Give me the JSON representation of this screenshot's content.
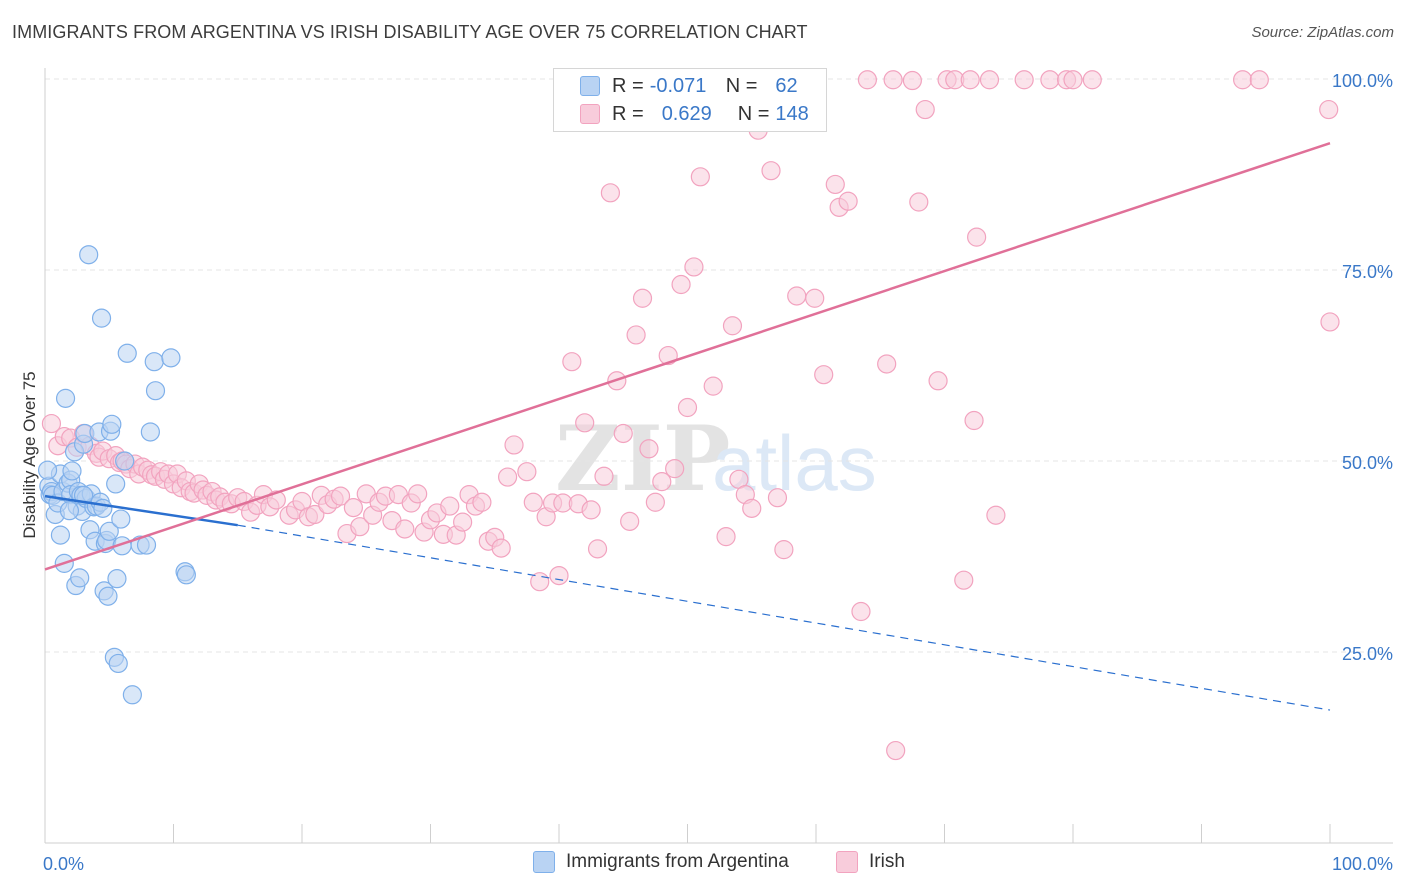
{
  "title": "IMMIGRANTS FROM ARGENTINA VS IRISH DISABILITY AGE OVER 75 CORRELATION CHART",
  "source": "Source: ZipAtlas.com",
  "legend_top": [
    {
      "r_label": "R = ",
      "r_value": "-0.071",
      "n_label": "N = ",
      "n_value": "62",
      "color": "#7fb0ea"
    },
    {
      "r_label": "R = ",
      "r_value": "0.629",
      "n_label": "N = ",
      "n_value": "148",
      "color": "#f2a3bf"
    }
  ],
  "chart_data": {
    "type": "scatter",
    "title": "IMMIGRANTS FROM ARGENTINA VS IRISH DISABILITY AGE OVER 75 CORRELATION CHART",
    "xlabel": "",
    "ylabel": "Disability Age Over 75",
    "xlim": [
      0,
      100
    ],
    "ylim": [
      0,
      100
    ],
    "x_tick_labels": [
      "0.0%",
      "100.0%"
    ],
    "y_tick_labels": [
      "25.0%",
      "50.0%",
      "75.0%",
      "100.0%"
    ],
    "y_ticks": [
      25,
      50,
      75,
      100
    ],
    "grid": "horizontal dashed",
    "watermark": {
      "part1": "ZIP",
      "part2": "atlas"
    },
    "series": [
      {
        "name": "Immigrants from Argentina",
        "color": "#7fb0ea",
        "fill": "#b9d3f3",
        "trend_line": {
          "x": [
            0,
            15
          ],
          "y": [
            45.4,
            41.6
          ],
          "extended_x": [
            15,
            100
          ],
          "extended_y": [
            41.6,
            17.4
          ],
          "color": "#2a6fcf"
        },
        "points": [
          [
            0.3,
            46.7
          ],
          [
            0.4,
            45.6
          ],
          [
            0.5,
            46.0
          ],
          [
            0.6,
            45.5
          ],
          [
            0.8,
            43.0
          ],
          [
            1.0,
            44.5
          ],
          [
            1.2,
            40.3
          ],
          [
            1.2,
            48.3
          ],
          [
            1.4,
            46.0
          ],
          [
            1.5,
            36.6
          ],
          [
            1.6,
            58.2
          ],
          [
            1.8,
            47.1
          ],
          [
            2.0,
            47.5
          ],
          [
            2.0,
            45.6
          ],
          [
            2.1,
            48.7
          ],
          [
            2.3,
            51.2
          ],
          [
            2.4,
            33.7
          ],
          [
            2.5,
            44.1
          ],
          [
            2.6,
            46.0
          ],
          [
            2.7,
            34.7
          ],
          [
            2.8,
            45.5
          ],
          [
            2.9,
            43.4
          ],
          [
            3.0,
            52.2
          ],
          [
            3.1,
            53.6
          ],
          [
            3.2,
            45.1
          ],
          [
            3.4,
            77.0
          ],
          [
            3.5,
            41.0
          ],
          [
            3.6,
            45.7
          ],
          [
            3.8,
            44.0
          ],
          [
            3.9,
            39.5
          ],
          [
            4.0,
            44.1
          ],
          [
            4.2,
            53.8
          ],
          [
            4.3,
            44.6
          ],
          [
            4.4,
            68.7
          ],
          [
            4.5,
            43.8
          ],
          [
            4.6,
            33.0
          ],
          [
            4.7,
            39.2
          ],
          [
            4.8,
            39.6
          ],
          [
            4.9,
            32.3
          ],
          [
            5.0,
            40.8
          ],
          [
            5.1,
            53.9
          ],
          [
            5.2,
            54.8
          ],
          [
            5.4,
            24.3
          ],
          [
            5.5,
            47.0
          ],
          [
            5.6,
            34.6
          ],
          [
            5.7,
            23.5
          ],
          [
            5.9,
            42.4
          ],
          [
            6.0,
            38.9
          ],
          [
            6.2,
            50.0
          ],
          [
            6.4,
            64.1
          ],
          [
            6.8,
            19.4
          ],
          [
            7.4,
            39.0
          ],
          [
            7.9,
            39.0
          ],
          [
            8.2,
            53.8
          ],
          [
            8.5,
            63.0
          ],
          [
            8.6,
            59.2
          ],
          [
            9.8,
            63.5
          ],
          [
            10.9,
            35.5
          ],
          [
            11.0,
            35.1
          ],
          [
            0.2,
            48.8
          ],
          [
            1.9,
            43.5
          ],
          [
            3.0,
            45.5
          ]
        ]
      },
      {
        "name": "Irish",
        "color": "#f2a3bf",
        "fill": "#f8ccdb",
        "trend_line": {
          "x": [
            0,
            100
          ],
          "y": [
            35.8,
            91.6
          ],
          "color": "#e07098"
        },
        "points": [
          [
            0.5,
            54.9
          ],
          [
            1.0,
            52.0
          ],
          [
            1.5,
            53.2
          ],
          [
            2.0,
            53.0
          ],
          [
            2.5,
            51.8
          ],
          [
            3.0,
            53.6
          ],
          [
            3.5,
            52.0
          ],
          [
            4.0,
            51.0
          ],
          [
            4.2,
            50.5
          ],
          [
            4.5,
            51.3
          ],
          [
            5.0,
            50.3
          ],
          [
            5.5,
            50.7
          ],
          [
            5.8,
            49.8
          ],
          [
            6.0,
            50.0
          ],
          [
            6.3,
            49.6
          ],
          [
            6.6,
            49.0
          ],
          [
            7.0,
            49.6
          ],
          [
            7.3,
            48.3
          ],
          [
            7.6,
            49.2
          ],
          [
            8.0,
            48.8
          ],
          [
            8.3,
            48.2
          ],
          [
            8.6,
            48.0
          ],
          [
            9.0,
            48.6
          ],
          [
            9.3,
            47.6
          ],
          [
            9.6,
            48.3
          ],
          [
            10.0,
            47.0
          ],
          [
            10.3,
            48.3
          ],
          [
            10.6,
            46.5
          ],
          [
            11.0,
            47.4
          ],
          [
            11.3,
            46.0
          ],
          [
            11.6,
            45.8
          ],
          [
            12.0,
            47.0
          ],
          [
            12.3,
            46.2
          ],
          [
            12.6,
            45.5
          ],
          [
            13.0,
            46.0
          ],
          [
            13.3,
            44.9
          ],
          [
            13.6,
            45.3
          ],
          [
            14.0,
            44.6
          ],
          [
            14.5,
            44.4
          ],
          [
            15.0,
            45.2
          ],
          [
            15.5,
            44.7
          ],
          [
            16.0,
            43.3
          ],
          [
            16.5,
            44.2
          ],
          [
            17.0,
            45.6
          ],
          [
            17.5,
            44.0
          ],
          [
            18.0,
            44.9
          ],
          [
            19.0,
            42.9
          ],
          [
            19.5,
            43.6
          ],
          [
            20.0,
            44.7
          ],
          [
            20.5,
            42.7
          ],
          [
            21.0,
            43.0
          ],
          [
            21.5,
            45.5
          ],
          [
            22.0,
            44.3
          ],
          [
            22.5,
            45.0
          ],
          [
            23.0,
            45.4
          ],
          [
            23.5,
            40.5
          ],
          [
            24.0,
            43.9
          ],
          [
            24.5,
            41.4
          ],
          [
            25.0,
            45.7
          ],
          [
            25.5,
            42.9
          ],
          [
            26.0,
            44.6
          ],
          [
            26.5,
            45.4
          ],
          [
            27.0,
            42.2
          ],
          [
            27.5,
            45.6
          ],
          [
            28.0,
            41.1
          ],
          [
            28.5,
            44.5
          ],
          [
            29.0,
            45.7
          ],
          [
            29.5,
            40.7
          ],
          [
            30.0,
            42.3
          ],
          [
            30.5,
            43.2
          ],
          [
            31.0,
            40.4
          ],
          [
            31.5,
            44.1
          ],
          [
            32.0,
            40.3
          ],
          [
            32.5,
            42.0
          ],
          [
            33.0,
            45.6
          ],
          [
            33.5,
            44.1
          ],
          [
            34.0,
            44.6
          ],
          [
            34.5,
            39.5
          ],
          [
            35.0,
            40.0
          ],
          [
            35.5,
            38.6
          ],
          [
            36.0,
            47.9
          ],
          [
            36.5,
            52.1
          ],
          [
            37.5,
            48.6
          ],
          [
            38.0,
            44.6
          ],
          [
            38.5,
            34.2
          ],
          [
            39.0,
            42.7
          ],
          [
            39.5,
            44.5
          ],
          [
            40.0,
            35.0
          ],
          [
            40.3,
            44.5
          ],
          [
            41.0,
            63.0
          ],
          [
            41.5,
            44.4
          ],
          [
            42.0,
            55.0
          ],
          [
            42.5,
            43.6
          ],
          [
            43.0,
            38.5
          ],
          [
            43.5,
            48.0
          ],
          [
            44.0,
            85.1
          ],
          [
            44.5,
            60.5
          ],
          [
            45.0,
            53.6
          ],
          [
            45.5,
            42.1
          ],
          [
            46.0,
            66.5
          ],
          [
            46.5,
            71.3
          ],
          [
            47.0,
            51.6
          ],
          [
            47.5,
            44.6
          ],
          [
            48.0,
            47.3
          ],
          [
            48.5,
            63.8
          ],
          [
            49.0,
            49.0
          ],
          [
            49.5,
            73.1
          ],
          [
            50.0,
            57.0
          ],
          [
            50.5,
            75.4
          ],
          [
            51.0,
            87.2
          ],
          [
            52.0,
            59.8
          ],
          [
            53.0,
            40.1
          ],
          [
            53.5,
            67.7
          ],
          [
            54.0,
            47.6
          ],
          [
            54.5,
            45.6
          ],
          [
            55.0,
            43.8
          ],
          [
            55.5,
            93.3
          ],
          [
            56.5,
            88.0
          ],
          [
            57.0,
            45.2
          ],
          [
            57.5,
            38.4
          ],
          [
            58.5,
            71.6
          ],
          [
            59.5,
            99.9
          ],
          [
            59.9,
            71.3
          ],
          [
            60.6,
            61.3
          ],
          [
            61.5,
            86.2
          ],
          [
            61.8,
            83.2
          ],
          [
            62.5,
            84.0
          ],
          [
            63.5,
            30.3
          ],
          [
            64.0,
            99.9
          ],
          [
            65.5,
            62.7
          ],
          [
            66.0,
            99.9
          ],
          [
            66.2,
            12.1
          ],
          [
            67.5,
            99.8
          ],
          [
            68.0,
            83.9
          ],
          [
            68.5,
            96.0
          ],
          [
            69.5,
            60.5
          ],
          [
            70.2,
            99.9
          ],
          [
            70.8,
            99.9
          ],
          [
            72.0,
            99.9
          ],
          [
            72.3,
            55.3
          ],
          [
            71.5,
            34.4
          ],
          [
            72.5,
            79.3
          ],
          [
            73.5,
            99.9
          ],
          [
            74.0,
            42.9
          ],
          [
            76.2,
            99.9
          ],
          [
            78.2,
            99.9
          ],
          [
            79.5,
            99.9
          ],
          [
            80.0,
            99.9
          ],
          [
            81.5,
            99.9
          ],
          [
            93.2,
            99.9
          ],
          [
            94.5,
            99.9
          ],
          [
            100.0,
            68.2
          ],
          [
            99.9,
            96.0
          ]
        ]
      }
    ]
  },
  "bottom_legend": [
    {
      "label": "Immigrants from Argentina",
      "color": "#7fb0ea",
      "fill": "#b9d3f3"
    },
    {
      "label": "Irish",
      "color": "#f2a3bf",
      "fill": "#f8ccdb"
    }
  ]
}
